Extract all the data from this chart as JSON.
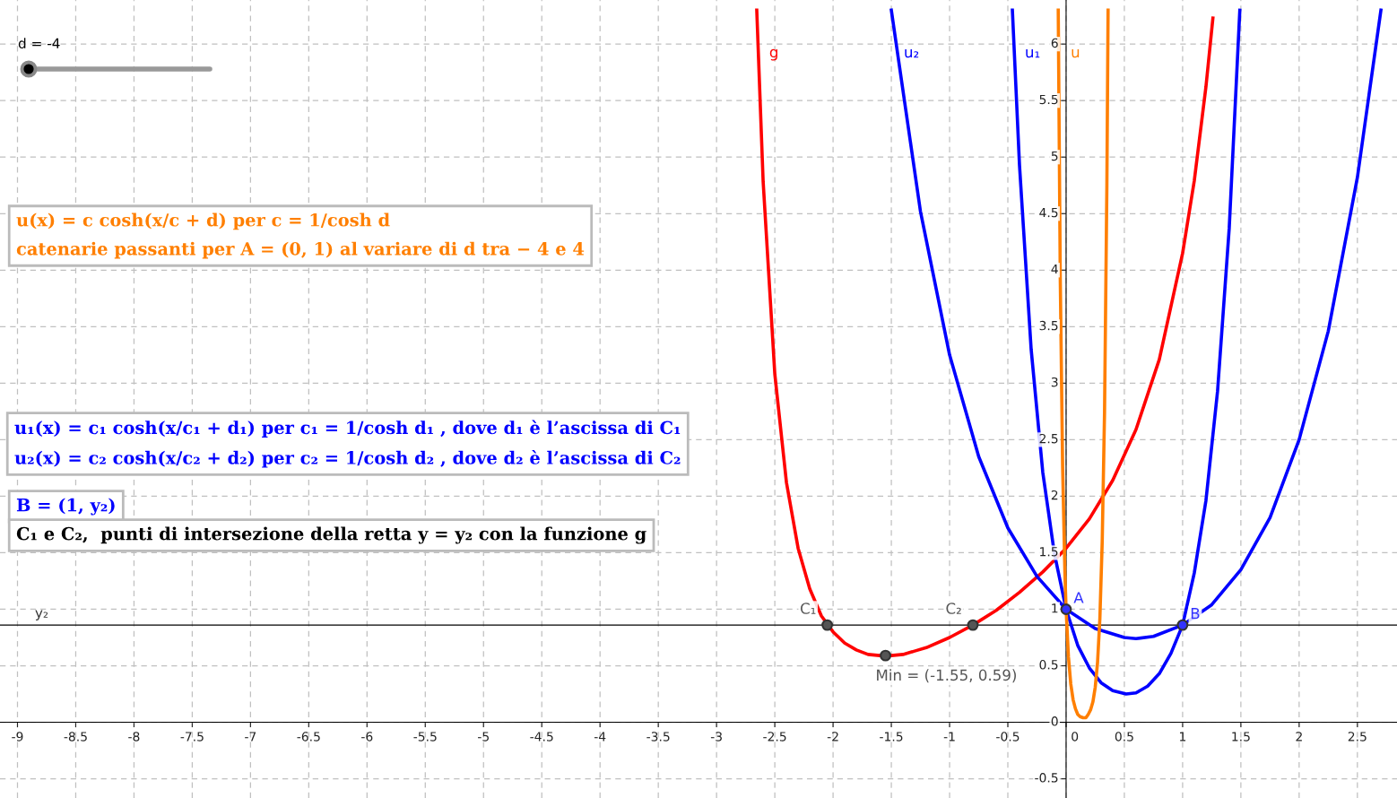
{
  "chart_data": {
    "type": "line",
    "xlim": [
      -9.15,
      2.84
    ],
    "ylim": [
      -0.67,
      6.39
    ],
    "xticks": [
      -9,
      -8.5,
      -8,
      -7.5,
      -7,
      -6.5,
      -6,
      -5.5,
      -5,
      -4.5,
      -4,
      -3.5,
      -3,
      -2.5,
      -2,
      -1.5,
      -1,
      -0.5,
      0,
      0.5,
      1,
      1.5,
      2,
      2.5
    ],
    "yticks": [
      -0.5,
      0,
      0.5,
      1,
      1.5,
      2,
      2.5,
      3,
      3.5,
      4,
      4.5,
      5,
      5.5,
      6
    ],
    "grid": true,
    "line_style": "solid",
    "series": [
      {
        "name": "g",
        "color": "#ff0000",
        "x": [
          -2.655,
          -2.6,
          -2.5,
          -2.4,
          -2.3,
          -2.2,
          -2.1,
          -2.0,
          -1.9,
          -1.8,
          -1.7,
          -1.6,
          -1.5,
          -1.4,
          -1.3,
          -1.2,
          -1.0,
          -0.8,
          -0.6,
          -0.4,
          -0.2,
          0,
          0.2,
          0.4,
          0.6,
          0.8,
          1.0,
          1.1,
          1.2,
          1.26
        ],
        "values": [
          6.3,
          4.78,
          3.08,
          2.12,
          1.54,
          1.18,
          0.94,
          0.8,
          0.7,
          0.64,
          0.6,
          0.59,
          0.59,
          0.6,
          0.63,
          0.66,
          0.75,
          0.86,
          0.99,
          1.15,
          1.33,
          1.54,
          1.8,
          2.14,
          2.59,
          3.21,
          4.15,
          4.79,
          5.62,
          6.23
        ]
      },
      {
        "name": "u₂",
        "color": "#0000ff",
        "x": [
          -1.5,
          -1.25,
          -1.0,
          -0.75,
          -0.5,
          -0.25,
          0,
          0.25,
          0.5,
          0.6,
          0.75,
          1.0,
          1.25,
          1.5,
          1.75,
          2.0,
          2.25,
          2.5,
          2.702
        ],
        "values": [
          6.3,
          4.52,
          3.25,
          2.35,
          1.72,
          1.29,
          1.0,
          0.83,
          0.75,
          0.74,
          0.76,
          0.86,
          1.04,
          1.35,
          1.81,
          2.5,
          3.46,
          4.82,
          6.3
        ]
      },
      {
        "name": "u₁",
        "color": "#0000ff",
        "x": [
          -0.461,
          -0.4,
          -0.3,
          -0.2,
          -0.1,
          0,
          0.1,
          0.2,
          0.3,
          0.4,
          0.515,
          0.6,
          0.7,
          0.8,
          0.9,
          1.0,
          1.1,
          1.2,
          1.3,
          1.4,
          1.491
        ],
        "values": [
          6.3,
          4.93,
          3.3,
          2.21,
          1.49,
          1.0,
          0.68,
          0.48,
          0.35,
          0.28,
          0.25,
          0.26,
          0.32,
          0.43,
          0.61,
          0.86,
          1.32,
          1.96,
          2.93,
          4.37,
          6.3
        ]
      },
      {
        "name": "u",
        "color": "#ff7f00",
        "x": [
          -0.0674,
          -0.05,
          -0.03,
          -0.01,
          0,
          0.02,
          0.04,
          0.06,
          0.08,
          0.1,
          0.12,
          0.146,
          0.17,
          0.19,
          0.21,
          0.23,
          0.25,
          0.27,
          0.29,
          0.31,
          0.33,
          0.35,
          0.3603
        ],
        "values": [
          6.3,
          3.92,
          2.27,
          1.31,
          1.0,
          0.58,
          0.34,
          0.2,
          0.12,
          0.07,
          0.05,
          0.04,
          0.04,
          0.07,
          0.11,
          0.18,
          0.31,
          0.53,
          0.92,
          1.6,
          2.75,
          4.75,
          6.3
        ]
      },
      {
        "name": "A",
        "type": "scatter",
        "marker": "circle",
        "color": "#3333ff",
        "x": [
          0
        ],
        "values": [
          1
        ]
      },
      {
        "name": "B",
        "type": "scatter",
        "marker": "circle",
        "color": "#3333ff",
        "x": [
          1
        ],
        "values": [
          0.86
        ]
      },
      {
        "name": "C₁",
        "type": "scatter",
        "marker": "circle",
        "color": "#555555",
        "x": [
          -2.05
        ],
        "values": [
          0.86
        ]
      },
      {
        "name": "C₂",
        "type": "scatter",
        "marker": "circle",
        "color": "#555555",
        "x": [
          -0.8
        ],
        "values": [
          0.86
        ]
      },
      {
        "name": "Min = (-1.55, 0.59)",
        "type": "scatter",
        "marker": "circle",
        "color": "#555555",
        "x": [
          -1.55
        ],
        "values": [
          0.59
        ]
      }
    ],
    "ref_lines": [
      {
        "axis": "y",
        "value": 0.86,
        "label": "y₂",
        "color": "#000000"
      }
    ],
    "annotations": [
      "d = -4",
      "u(x) = c cosh(x/c + d) per c = 1/cosh d\ncatenarie passanti per A = (0, 1) al variare di d tra − 4 e 4",
      "u₁(x) = c₁ cosh(x/c₁ + d₁) per c₁ = 1/cosh d₁ , dove d₁ è l’ascissa di C₁\nu₂(x) = c₂ cosh(x/c₂ + d₂) per c₂ = 1/cosh d₂ , dove d₂ è l’ascissa di C₂",
      "B = (1, y₂)",
      "C₁ e C₂,  punti di intersezione della retta y = y₂ con la funzione g"
    ]
  }
}
